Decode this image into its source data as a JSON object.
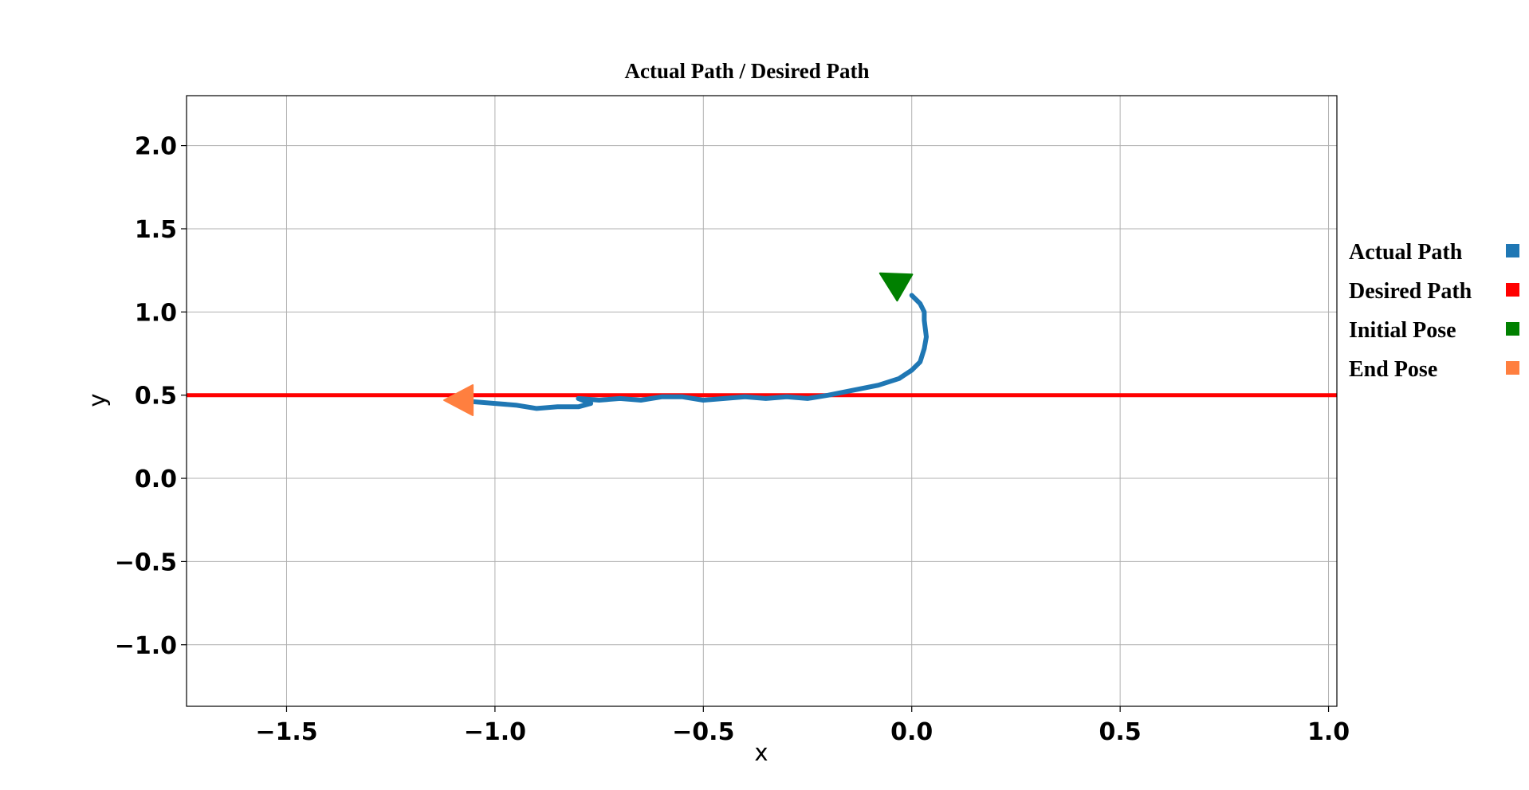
{
  "chart_data": {
    "type": "line",
    "title": "Actual Path / Desired Path",
    "xlabel": "x",
    "ylabel": "y",
    "xlim": [
      -1.74,
      1.02
    ],
    "ylim": [
      -1.37,
      2.3
    ],
    "xticks": [
      -1.5,
      -1.0,
      -0.5,
      0.0,
      0.5,
      1.0
    ],
    "yticks": [
      -1.0,
      -0.5,
      0.0,
      0.5,
      1.0,
      1.5,
      2.0
    ],
    "xtick_labels": [
      "−1.5",
      "−1.0",
      "−0.5",
      "0.0",
      "0.5",
      "1.0"
    ],
    "ytick_labels": [
      "−1.0",
      "−0.5",
      "0.0",
      "0.5",
      "1.0",
      "1.5",
      "2.0"
    ],
    "grid": true,
    "legend_position": "right",
    "series": [
      {
        "name": "Actual Path",
        "color": "#1f77b4",
        "x": [
          0.0,
          0.02,
          0.03,
          0.03,
          0.035,
          0.03,
          0.02,
          0.0,
          -0.03,
          -0.08,
          -0.14,
          -0.2,
          -0.25,
          -0.3,
          -0.35,
          -0.4,
          -0.45,
          -0.5,
          -0.55,
          -0.6,
          -0.65,
          -0.7,
          -0.75,
          -0.8,
          -0.77,
          -0.8,
          -0.85,
          -0.9,
          -0.95,
          -1.0,
          -1.05
        ],
        "y": [
          1.1,
          1.05,
          1.0,
          0.95,
          0.85,
          0.78,
          0.7,
          0.65,
          0.6,
          0.56,
          0.53,
          0.5,
          0.48,
          0.49,
          0.48,
          0.49,
          0.48,
          0.47,
          0.49,
          0.49,
          0.47,
          0.48,
          0.47,
          0.48,
          0.45,
          0.43,
          0.43,
          0.42,
          0.44,
          0.45,
          0.46
        ]
      },
      {
        "name": "Desired Path",
        "color": "#ff0000",
        "x": [
          -1.74,
          1.02
        ],
        "y": [
          0.5,
          0.5
        ]
      }
    ],
    "markers": [
      {
        "name": "Initial Pose",
        "color": "#008000",
        "x": -0.04,
        "y": 1.18,
        "heading_deg": 150
      },
      {
        "name": "End Pose",
        "color": "#ff7f3f",
        "x": -1.08,
        "y": 0.47,
        "heading_deg": 180
      }
    ]
  }
}
